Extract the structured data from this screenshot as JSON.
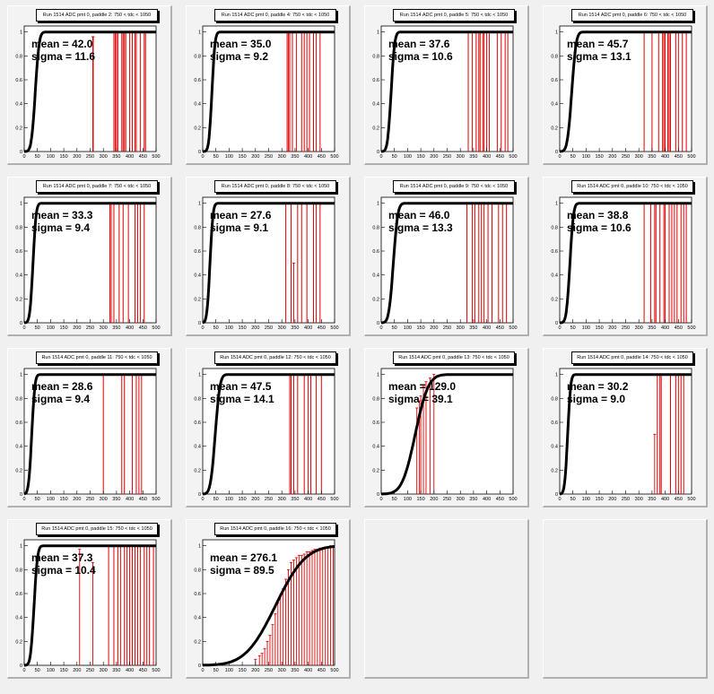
{
  "chart_data": [
    {
      "type": "line",
      "title": "Run 1514 ADC pmt 0, paddle 2: 750 < tdc < 1050",
      "mean_label": "mean = 42.0",
      "sigma_label": "sigma = 11.6",
      "mean": 42.0,
      "sigma": 11.6,
      "xlim": [
        0,
        500
      ],
      "ylim": [
        0,
        1.05
      ],
      "x_ticks": [
        "0",
        "50",
        "100",
        "150",
        "200",
        "250",
        "300",
        "350",
        "400",
        "450",
        "500"
      ],
      "y_ticks": [
        "0",
        "0.2",
        "0.4",
        "0.6",
        "0.8",
        "1"
      ],
      "red_spikes_x": [
        340,
        345,
        350,
        355,
        370,
        375,
        380,
        385,
        400,
        410,
        420,
        425,
        440,
        455,
        460
      ],
      "red_partial": [
        [
          260,
          0.96
        ],
        [
          262,
          0.96
        ]
      ]
    },
    {
      "type": "line",
      "title": "Run 1514 ADC pmt 0, paddle 4: 750 < tdc < 1050",
      "mean_label": "mean = 35.0",
      "sigma_label": "sigma = 9.2",
      "mean": 35.0,
      "sigma": 9.2,
      "xlim": [
        0,
        500
      ],
      "ylim": [
        0,
        1.05
      ],
      "x_ticks": [
        "0",
        "50",
        "100",
        "150",
        "200",
        "250",
        "300",
        "350",
        "400",
        "450",
        "500"
      ],
      "y_ticks": [
        "0",
        "0.2",
        "0.4",
        "0.6",
        "0.8",
        "1"
      ],
      "red_spikes_x": [
        320,
        325,
        330,
        340,
        355,
        375,
        385,
        395,
        405,
        420,
        430,
        445
      ],
      "red_partial": []
    },
    {
      "type": "line",
      "title": "Run 1514 ADC pmt 0, paddle 5: 750 < tdc < 1050",
      "mean_label": "mean = 37.6",
      "sigma_label": "sigma = 10.6",
      "mean": 37.6,
      "sigma": 10.6,
      "xlim": [
        0,
        500
      ],
      "ylim": [
        0,
        1.05
      ],
      "x_ticks": [
        "0",
        "50",
        "100",
        "150",
        "200",
        "250",
        "300",
        "350",
        "400",
        "450",
        "500"
      ],
      "y_ticks": [
        "0",
        "0.2",
        "0.4",
        "0.6",
        "0.8",
        "1"
      ],
      "red_spikes_x": [
        330,
        345,
        360,
        370,
        375,
        385,
        390,
        400,
        410,
        440,
        455,
        470,
        480
      ],
      "red_partial": []
    },
    {
      "type": "line",
      "title": "Run 1514 ADC pmt 0, paddle 6: 750 < tdc < 1050",
      "mean_label": "mean = 45.7",
      "sigma_label": "sigma = 13.1",
      "mean": 45.7,
      "sigma": 13.1,
      "xlim": [
        0,
        500
      ],
      "ylim": [
        0,
        1.05
      ],
      "x_ticks": [
        "0",
        "50",
        "100",
        "150",
        "200",
        "250",
        "300",
        "350",
        "400",
        "450",
        "500"
      ],
      "y_ticks": [
        "0",
        "0.2",
        "0.4",
        "0.6",
        "0.8",
        "1"
      ],
      "red_spikes_x": [
        320,
        350,
        375,
        390,
        395,
        400,
        410,
        415,
        420,
        440,
        450,
        465,
        480
      ],
      "red_partial": []
    },
    {
      "type": "line",
      "title": "Run 1514 ADC pmt 0, paddle 7: 750 < tdc < 1050",
      "mean_label": "mean = 33.3",
      "sigma_label": "sigma = 9.4",
      "mean": 33.3,
      "sigma": 9.4,
      "xlim": [
        0,
        500
      ],
      "ylim": [
        0,
        1.05
      ],
      "x_ticks": [
        "0",
        "50",
        "100",
        "150",
        "200",
        "250",
        "300",
        "350",
        "400",
        "450",
        "500"
      ],
      "y_ticks": [
        "0",
        "0.2",
        "0.4",
        "0.6",
        "0.8",
        "1"
      ],
      "red_spikes_x": [
        325,
        330,
        340,
        360,
        375,
        395,
        420,
        430,
        440,
        455
      ],
      "red_partial": []
    },
    {
      "type": "line",
      "title": "Run 1514 ADC pmt 0, paddle 8: 750 < tdc < 1050",
      "mean_label": "mean = 27.6",
      "sigma_label": "sigma = 9.1",
      "mean": 27.6,
      "sigma": 9.1,
      "xlim": [
        0,
        500
      ],
      "ylim": [
        0,
        1.05
      ],
      "x_ticks": [
        "0",
        "50",
        "100",
        "150",
        "200",
        "250",
        "300",
        "350",
        "400",
        "450",
        "500"
      ],
      "y_ticks": [
        "0",
        "0.2",
        "0.4",
        "0.6",
        "0.8",
        "1"
      ],
      "red_spikes_x": [
        315,
        335,
        360,
        375,
        395,
        420,
        430,
        445
      ],
      "red_partial": [
        [
          345,
          0.5
        ]
      ]
    },
    {
      "type": "line",
      "title": "Run 1514 ADC pmt 0, paddle 9: 750 < tdc < 1050",
      "mean_label": "mean = 46.0",
      "sigma_label": "sigma = 13.3",
      "mean": 46.0,
      "sigma": 13.3,
      "xlim": [
        0,
        500
      ],
      "ylim": [
        0,
        1.05
      ],
      "x_ticks": [
        "0",
        "50",
        "100",
        "150",
        "200",
        "250",
        "300",
        "350",
        "400",
        "450",
        "500"
      ],
      "y_ticks": [
        "0",
        "0.2",
        "0.4",
        "0.6",
        "0.8",
        "1"
      ],
      "red_spikes_x": [
        325,
        345,
        355,
        370,
        380,
        390,
        405,
        420,
        445,
        460,
        475
      ],
      "red_partial": []
    },
    {
      "type": "line",
      "title": "Run 1514 ADC pmt 0, paddle 10: 750 < tdc < 1050",
      "mean_label": "mean = 38.8",
      "sigma_label": "sigma = 10.6",
      "mean": 38.8,
      "sigma": 10.6,
      "xlim": [
        0,
        500
      ],
      "ylim": [
        0,
        1.05
      ],
      "x_ticks": [
        "0",
        "50",
        "100",
        "150",
        "200",
        "250",
        "300",
        "350",
        "400",
        "450",
        "500"
      ],
      "y_ticks": [
        "0",
        "0.2",
        "0.4",
        "0.6",
        "0.8",
        "1"
      ],
      "red_spikes_x": [
        320,
        345,
        360,
        365,
        380,
        395,
        400,
        415,
        425,
        435,
        445,
        460,
        470,
        480
      ],
      "red_partial": []
    },
    {
      "type": "line",
      "title": "Run 1514 ADC pmt 0, paddle 11: 750 < tdc < 1050",
      "mean_label": "mean = 28.6",
      "sigma_label": "sigma = 9.4",
      "mean": 28.6,
      "sigma": 9.4,
      "xlim": [
        0,
        500
      ],
      "ylim": [
        0,
        1.05
      ],
      "x_ticks": [
        "0",
        "50",
        "100",
        "150",
        "200",
        "250",
        "300",
        "350",
        "400",
        "450",
        "500"
      ],
      "y_ticks": [
        "0",
        "0.2",
        "0.4",
        "0.6",
        "0.8",
        "1"
      ],
      "red_spikes_x": [
        300,
        370,
        380,
        410,
        425,
        435,
        445
      ],
      "red_partial": []
    },
    {
      "type": "line",
      "title": "Run 1514 ADC pmt 0, paddle 12: 750 < tdc < 1050",
      "mean_label": "mean = 47.5",
      "sigma_label": "sigma = 14.1",
      "mean": 47.5,
      "sigma": 14.1,
      "xlim": [
        0,
        500
      ],
      "ylim": [
        0,
        1.05
      ],
      "x_ticks": [
        "0",
        "50",
        "100",
        "150",
        "200",
        "250",
        "300",
        "350",
        "400",
        "450",
        "500"
      ],
      "y_ticks": [
        "0",
        "0.2",
        "0.4",
        "0.6",
        "0.8",
        "1"
      ],
      "red_spikes_x": [
        330,
        335,
        345,
        360,
        385,
        400,
        410,
        430,
        450
      ],
      "red_partial": []
    },
    {
      "type": "line",
      "title": "Run 1514 ADC pmt 0, paddle 13: 750 < tdc < 1050",
      "mean_label": "mean = 129.0",
      "sigma_label": "sigma = 39.1",
      "mean": 129.0,
      "sigma": 39.1,
      "xlim": [
        0,
        500
      ],
      "ylim": [
        0,
        1.05
      ],
      "x_ticks": [
        "0",
        "50",
        "100",
        "150",
        "200",
        "250",
        "300",
        "350",
        "400",
        "450",
        "500"
      ],
      "y_ticks": [
        "0",
        "0.2",
        "0.4",
        "0.6",
        "0.8",
        "1"
      ],
      "red_spikes_x": [],
      "red_partial": [
        [
          135,
          0.72
        ],
        [
          145,
          0.78
        ],
        [
          150,
          0.82
        ],
        [
          160,
          0.9
        ],
        [
          170,
          0.94
        ],
        [
          185,
          0.97
        ],
        [
          200,
          1.0
        ]
      ]
    },
    {
      "type": "line",
      "title": "Run 1514 ADC pmt 0, paddle 14: 750 < tdc < 1050",
      "mean_label": "mean = 30.2",
      "sigma_label": "sigma = 9.0",
      "mean": 30.2,
      "sigma": 9.0,
      "xlim": [
        0,
        500
      ],
      "ylim": [
        0,
        1.05
      ],
      "x_ticks": [
        "0",
        "50",
        "100",
        "150",
        "200",
        "250",
        "300",
        "350",
        "400",
        "450",
        "500"
      ],
      "y_ticks": [
        "0",
        "0.2",
        "0.4",
        "0.6",
        "0.8",
        "1"
      ],
      "red_spikes_x": [
        370,
        380,
        385,
        420,
        440,
        450,
        460,
        470
      ],
      "red_partial": [
        [
          360,
          0.5
        ]
      ]
    },
    {
      "type": "line",
      "title": "Run 1514 ADC pmt 0, paddle 15: 750 < tdc < 1050",
      "mean_label": "mean = 37.3",
      "sigma_label": "sigma = 10.4",
      "mean": 37.3,
      "sigma": 10.4,
      "xlim": [
        0,
        500
      ],
      "ylim": [
        0,
        1.05
      ],
      "x_ticks": [
        "0",
        "50",
        "100",
        "150",
        "200",
        "250",
        "300",
        "350",
        "400",
        "450",
        "500"
      ],
      "y_ticks": [
        "0",
        "0.2",
        "0.4",
        "0.6",
        "0.8",
        "1"
      ],
      "red_spikes_x": [
        320,
        340,
        355,
        365,
        380,
        390,
        400,
        410,
        420,
        430,
        440,
        455,
        465,
        475,
        490
      ],
      "red_partial": [
        [
          210,
          0.97
        ],
        [
          260,
          0.86
        ]
      ]
    },
    {
      "type": "line",
      "title": "Run 1514 ADC pmt 0, paddle 16: 750 < tdc < 1050",
      "mean_label": "mean = 276.1",
      "sigma_label": "sigma = 89.5",
      "mean": 276.1,
      "sigma": 89.5,
      "xlim": [
        0,
        500
      ],
      "ylim": [
        0,
        1.05
      ],
      "x_ticks": [
        "0",
        "50",
        "100",
        "150",
        "200",
        "250",
        "300",
        "350",
        "400",
        "450",
        "500"
      ],
      "y_ticks": [
        "0",
        "0.2",
        "0.4",
        "0.6",
        "0.8",
        "1"
      ],
      "red_spikes_x": [],
      "red_partial": [
        [
          200,
          0.05
        ],
        [
          215,
          0.08
        ],
        [
          225,
          0.1
        ],
        [
          235,
          0.14
        ],
        [
          245,
          0.2
        ],
        [
          255,
          0.25
        ],
        [
          265,
          0.34
        ],
        [
          275,
          0.43
        ],
        [
          285,
          0.52
        ],
        [
          295,
          0.58
        ],
        [
          305,
          0.64
        ],
        [
          315,
          0.72
        ],
        [
          325,
          0.8
        ],
        [
          335,
          0.86
        ],
        [
          345,
          0.88
        ],
        [
          355,
          0.9
        ],
        [
          365,
          0.92
        ],
        [
          375,
          0.92
        ],
        [
          385,
          0.93
        ],
        [
          395,
          0.95
        ],
        [
          405,
          0.95
        ],
        [
          415,
          0.96
        ],
        [
          425,
          0.97
        ],
        [
          435,
          0.97
        ],
        [
          445,
          0.98
        ],
        [
          455,
          0.98
        ],
        [
          465,
          0.99
        ],
        [
          475,
          0.99
        ],
        [
          485,
          1.0
        ],
        [
          495,
          1.0
        ]
      ]
    }
  ]
}
